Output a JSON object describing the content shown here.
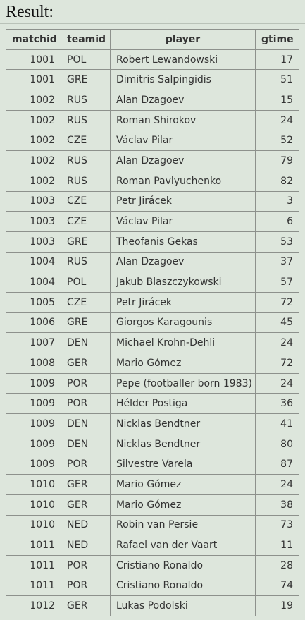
{
  "result_label": "Result:",
  "table": {
    "columns": [
      "matchid",
      "teamid",
      "player",
      "gtime"
    ],
    "rows": [
      {
        "matchid": "1001",
        "teamid": "POL",
        "player": "Robert Lewandowski",
        "gtime": "17"
      },
      {
        "matchid": "1001",
        "teamid": "GRE",
        "player": "Dimitris Salpingidis",
        "gtime": "51"
      },
      {
        "matchid": "1002",
        "teamid": "RUS",
        "player": "Alan Dzagoev",
        "gtime": "15"
      },
      {
        "matchid": "1002",
        "teamid": "RUS",
        "player": "Roman Shirokov",
        "gtime": "24"
      },
      {
        "matchid": "1002",
        "teamid": "CZE",
        "player": "Václav Pilar",
        "gtime": "52"
      },
      {
        "matchid": "1002",
        "teamid": "RUS",
        "player": "Alan Dzagoev",
        "gtime": "79"
      },
      {
        "matchid": "1002",
        "teamid": "RUS",
        "player": "Roman Pavlyuchenko",
        "gtime": "82"
      },
      {
        "matchid": "1003",
        "teamid": "CZE",
        "player": "Petr Jirácek",
        "gtime": "3"
      },
      {
        "matchid": "1003",
        "teamid": "CZE",
        "player": "Václav Pilar",
        "gtime": "6"
      },
      {
        "matchid": "1003",
        "teamid": "GRE",
        "player": "Theofanis Gekas",
        "gtime": "53"
      },
      {
        "matchid": "1004",
        "teamid": "RUS",
        "player": "Alan Dzagoev",
        "gtime": "37"
      },
      {
        "matchid": "1004",
        "teamid": "POL",
        "player": "Jakub Blaszczykowski",
        "gtime": "57"
      },
      {
        "matchid": "1005",
        "teamid": "CZE",
        "player": "Petr Jirácek",
        "gtime": "72"
      },
      {
        "matchid": "1006",
        "teamid": "GRE",
        "player": "Giorgos Karagounis",
        "gtime": "45"
      },
      {
        "matchid": "1007",
        "teamid": "DEN",
        "player": "Michael Krohn-Dehli",
        "gtime": "24"
      },
      {
        "matchid": "1008",
        "teamid": "GER",
        "player": "Mario Gómez",
        "gtime": "72"
      },
      {
        "matchid": "1009",
        "teamid": "POR",
        "player": "Pepe (footballer born 1983)",
        "gtime": "24"
      },
      {
        "matchid": "1009",
        "teamid": "POR",
        "player": "Hélder Postiga",
        "gtime": "36"
      },
      {
        "matchid": "1009",
        "teamid": "DEN",
        "player": "Nicklas Bendtner",
        "gtime": "41"
      },
      {
        "matchid": "1009",
        "teamid": "DEN",
        "player": "Nicklas Bendtner",
        "gtime": "80"
      },
      {
        "matchid": "1009",
        "teamid": "POR",
        "player": "Silvestre Varela",
        "gtime": "87"
      },
      {
        "matchid": "1010",
        "teamid": "GER",
        "player": "Mario Gómez",
        "gtime": "24"
      },
      {
        "matchid": "1010",
        "teamid": "GER",
        "player": "Mario Gómez",
        "gtime": "38"
      },
      {
        "matchid": "1010",
        "teamid": "NED",
        "player": "Robin van Persie",
        "gtime": "73"
      },
      {
        "matchid": "1011",
        "teamid": "NED",
        "player": "Rafael van der Vaart",
        "gtime": "11"
      },
      {
        "matchid": "1011",
        "teamid": "POR",
        "player": "Cristiano Ronaldo",
        "gtime": "28"
      },
      {
        "matchid": "1011",
        "teamid": "POR",
        "player": "Cristiano Ronaldo",
        "gtime": "74"
      },
      {
        "matchid": "1012",
        "teamid": "GER",
        "player": "Lukas Podolski",
        "gtime": "19"
      }
    ]
  },
  "colors": {
    "background": "#dde6dc",
    "border": "#8d918c",
    "text": "#333333"
  }
}
